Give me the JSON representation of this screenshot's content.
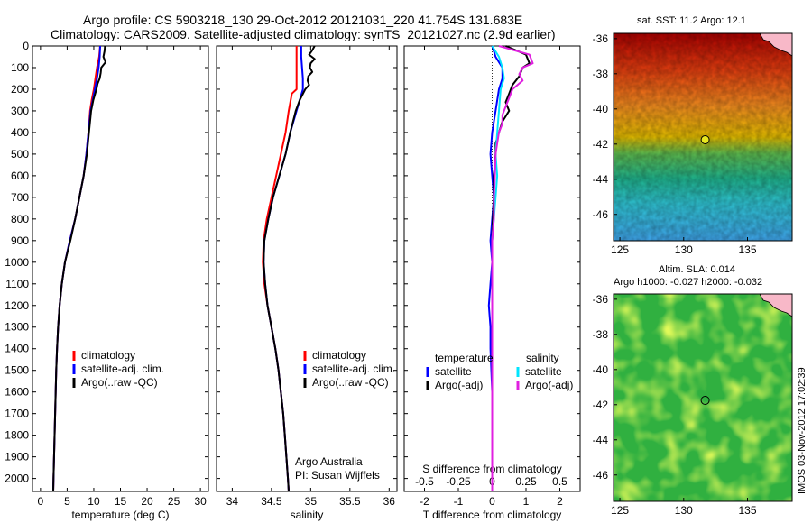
{
  "header": {
    "line1": "Argo profile: CS 5903218_130 29-Oct-2012 20121031_220 41.754S 131.683E",
    "line2": "Climatology: CARS2009. Satellite-adjusted climatology: synTS_20121027.nc (2.9d earlier)"
  },
  "colors": {
    "climatology": "#ff0000",
    "satellite": "#0000ff",
    "argo": "#000000",
    "salinity_satellite": "#00e5ff",
    "salinity_argo": "#e020e0"
  },
  "depth_axis": {
    "ticks": [
      0,
      100,
      200,
      300,
      400,
      500,
      600,
      700,
      800,
      900,
      1000,
      1100,
      1200,
      1300,
      1400,
      1500,
      1600,
      1700,
      1800,
      1900,
      2000
    ],
    "range": [
      0,
      2060
    ]
  },
  "chart_data": [
    {
      "type": "line",
      "panel": "temperature",
      "xlabel": "temperature (deg C)",
      "xlim": [
        -1.5,
        31.5
      ],
      "xticks": [
        0,
        5,
        10,
        15,
        20,
        25,
        30
      ],
      "ylim": [
        2060,
        0
      ],
      "legend": [
        "climatology",
        "satellite-adj. clim.",
        "Argo(..raw -QC)"
      ],
      "series": [
        {
          "name": "climatology",
          "depth": [
            0,
            50,
            100,
            150,
            200,
            250,
            300,
            400,
            500,
            600,
            700,
            800,
            900,
            1000,
            1100,
            1200,
            1300,
            1400,
            1500,
            1600,
            1700,
            1800,
            1900,
            2000,
            2060
          ],
          "values": [
            11.2,
            11.0,
            10.6,
            10.3,
            10.0,
            9.6,
            9.3,
            9.0,
            8.6,
            8.1,
            7.3,
            6.5,
            5.5,
            4.6,
            4.0,
            3.6,
            3.3,
            3.1,
            2.95,
            2.85,
            2.75,
            2.65,
            2.55,
            2.45,
            2.4
          ]
        },
        {
          "name": "satellite-adj. clim.",
          "depth": [
            0,
            50,
            100,
            150,
            200,
            250,
            300,
            400,
            500,
            600,
            700,
            800,
            900,
            1000,
            1100,
            1200,
            1300,
            1400,
            1500,
            1600,
            1700,
            1800,
            1900,
            2000,
            2060
          ],
          "values": [
            11.2,
            11.1,
            10.9,
            10.6,
            10.2,
            9.8,
            9.4,
            9.0,
            8.6,
            8.1,
            7.3,
            6.5,
            5.5,
            4.6,
            4.0,
            3.6,
            3.3,
            3.1,
            2.95,
            2.85,
            2.75,
            2.65,
            2.55,
            2.45,
            2.4
          ]
        },
        {
          "name": "Argo(..raw -QC)",
          "depth": [
            0,
            25,
            50,
            75,
            100,
            125,
            150,
            175,
            200,
            250,
            300,
            400,
            500,
            600,
            700,
            800,
            900,
            1000,
            1100,
            1200,
            1300,
            1400,
            1500,
            1600,
            1700,
            1800,
            1900,
            2000,
            2060
          ],
          "values": [
            12.1,
            12.0,
            11.8,
            12.2,
            11.4,
            11.3,
            11.1,
            10.7,
            10.5,
            9.9,
            9.5,
            9.1,
            8.7,
            8.1,
            7.3,
            6.5,
            5.6,
            4.6,
            4.0,
            3.6,
            3.3,
            3.1,
            2.95,
            2.85,
            2.75,
            2.65,
            2.55,
            2.45,
            2.4
          ]
        }
      ]
    },
    {
      "type": "line",
      "panel": "salinity",
      "xlabel": "salinity",
      "xlim": [
        33.8,
        36.1
      ],
      "xticks": [
        34,
        34.5,
        35,
        35.5,
        36
      ],
      "ylim": [
        2060,
        0
      ],
      "legend": [
        "climatology",
        "satellite-adj. clim.",
        "Argo(..raw -QC)"
      ],
      "annotation": [
        "Argo Australia",
        "PI: Susan Wijffels"
      ],
      "series": [
        {
          "name": "climatology",
          "depth": [
            0,
            100,
            200,
            220,
            300,
            400,
            500,
            600,
            700,
            800,
            900,
            1000,
            1100,
            1200,
            1300,
            1400,
            1500,
            1600,
            1700,
            1800,
            1900,
            2000,
            2060
          ],
          "values": [
            34.82,
            34.82,
            34.82,
            34.76,
            34.72,
            34.68,
            34.62,
            34.56,
            34.5,
            34.44,
            34.4,
            34.39,
            34.41,
            34.45,
            34.5,
            34.55,
            34.59,
            34.62,
            34.65,
            34.67,
            34.69,
            34.71,
            34.72
          ]
        },
        {
          "name": "satellite-adj. clim.",
          "depth": [
            0,
            50,
            100,
            150,
            200,
            250,
            300,
            400,
            500,
            600,
            700,
            800,
            900,
            1000,
            1100,
            1200,
            1300,
            1400,
            1500,
            1600,
            1700,
            1800,
            1900,
            2000,
            2060
          ],
          "values": [
            34.88,
            34.88,
            34.89,
            34.9,
            34.9,
            34.86,
            34.82,
            34.74,
            34.68,
            34.6,
            34.52,
            34.46,
            34.41,
            34.4,
            34.42,
            34.45,
            34.5,
            34.55,
            34.59,
            34.62,
            34.65,
            34.67,
            34.69,
            34.71,
            34.72
          ]
        },
        {
          "name": "Argo(..raw -QC)",
          "depth": [
            0,
            20,
            40,
            60,
            80,
            100,
            120,
            140,
            160,
            180,
            200,
            250,
            300,
            400,
            500,
            600,
            700,
            800,
            900,
            1000,
            1100,
            1200,
            1300,
            1400,
            1500,
            1600,
            1700,
            1800,
            1900,
            2000,
            2060
          ],
          "values": [
            35.05,
            35.02,
            34.98,
            35.05,
            35.0,
            34.99,
            35.02,
            34.97,
            34.96,
            34.98,
            34.93,
            34.86,
            34.81,
            34.74,
            34.68,
            34.6,
            34.52,
            34.46,
            34.41,
            34.4,
            34.42,
            34.45,
            34.5,
            34.55,
            34.59,
            34.62,
            34.65,
            34.67,
            34.69,
            34.71,
            34.72
          ]
        }
      ]
    },
    {
      "type": "line",
      "panel": "difference",
      "xlabel": "T difference from climatology",
      "xlabel_top": "S difference from climatology",
      "xlim": [
        -2.6,
        2.6
      ],
      "xticks": [
        -2,
        -1,
        0,
        1,
        2
      ],
      "xticks_top_labels": [
        "-0.5",
        "-0.25",
        "0",
        "0.25",
        "0.5"
      ],
      "ylim": [
        2060,
        0
      ],
      "legend_left_title": "temperature",
      "legend_right_title": "salinity",
      "legend": [
        "satellite",
        "Argo(-adj)",
        "satellite",
        "Argo(-adj)"
      ],
      "series": [
        {
          "name": "temperature satellite",
          "depth": [
            0,
            50,
            100,
            150,
            200,
            300,
            400,
            500,
            600,
            700,
            800,
            900,
            1000,
            1100,
            1200,
            1300,
            1400,
            1600,
            1800,
            2000,
            2060
          ],
          "values": [
            0.0,
            0.1,
            0.3,
            0.3,
            0.2,
            0.1,
            0.0,
            -0.05,
            0.0,
            0.05,
            0.0,
            -0.05,
            0.0,
            -0.05,
            -0.1,
            -0.05,
            -0.05,
            0.0,
            0.0,
            0.0,
            0.0
          ]
        },
        {
          "name": "temperature Argo(-adj)",
          "depth": [
            0,
            40,
            80,
            100,
            140,
            180,
            220,
            260,
            300,
            350,
            400,
            450,
            500,
            600,
            700,
            800,
            900,
            1000,
            1200,
            1400,
            1600,
            1800,
            2000,
            2060
          ],
          "values": [
            0.4,
            1.0,
            1.1,
            0.9,
            0.8,
            0.6,
            0.5,
            0.4,
            0.5,
            0.3,
            0.2,
            0.1,
            0.1,
            0.05,
            0.05,
            0.02,
            0.0,
            0.0,
            0.0,
            0.0,
            0.0,
            0.0,
            0.0,
            0.0
          ]
        },
        {
          "name": "salinity satellite",
          "depth": [
            0,
            50,
            100,
            150,
            200,
            300,
            400,
            500,
            600,
            700,
            800,
            900,
            1000,
            1100,
            1200,
            1300,
            1400,
            1600,
            1800,
            2000,
            2060
          ],
          "values": [
            0.0,
            0.2,
            0.3,
            0.35,
            0.25,
            0.2,
            0.15,
            0.1,
            0.15,
            0.1,
            0.05,
            0.0,
            0.0,
            0.0,
            0.0,
            0.0,
            0.0,
            0.0,
            0.0,
            0.0,
            0.0
          ]
        },
        {
          "name": "salinity Argo(-adj)",
          "depth": [
            0,
            40,
            80,
            100,
            130,
            160,
            200,
            240,
            280,
            320,
            360,
            400,
            450,
            500,
            600,
            700,
            800,
            900,
            1000,
            1200,
            1400,
            1600,
            1800,
            2000,
            2060
          ],
          "values": [
            0.2,
            1.1,
            1.2,
            0.9,
            0.8,
            0.9,
            0.6,
            0.5,
            0.4,
            0.3,
            0.3,
            0.2,
            0.15,
            0.1,
            0.08,
            0.05,
            0.05,
            0.0,
            0.0,
            0.0,
            0.0,
            0.0,
            0.0,
            0.0,
            0.0
          ]
        }
      ]
    },
    {
      "type": "heatmap",
      "panel": "sst-map",
      "title": "sat. SST: 11.2  Argo: 12.1",
      "xticks": [
        125,
        130,
        135
      ],
      "yticks": [
        -36,
        -38,
        -40,
        -42,
        -44,
        -46
      ],
      "xlim": [
        124.5,
        138.5
      ],
      "ylim": [
        -47.5,
        -35.7
      ],
      "marker": {
        "lon": 131.683,
        "lat": -41.754
      }
    },
    {
      "type": "heatmap",
      "panel": "sla-map",
      "title": "Altim. SLA: 0.014",
      "subtitle": "Argo h1000: -0.027 h2000: -0.032",
      "xticks": [
        125,
        130,
        135
      ],
      "yticks": [
        -36,
        -38,
        -40,
        -42,
        -44,
        -46
      ],
      "xlim": [
        124.5,
        138.5
      ],
      "ylim": [
        -47.5,
        -35.7
      ],
      "marker": {
        "lon": 131.683,
        "lat": -41.754
      }
    }
  ],
  "side_label": "IMOS 03-Nov-2012 17:02:39"
}
